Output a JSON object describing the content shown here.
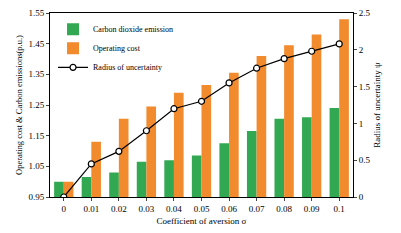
{
  "chart_data": {
    "type": "bar",
    "x_label": "Coefficient of aversion σ",
    "y_label": "Operating cost & Carbon emissions(p.u.)",
    "y2_label": "Radius of uncertainty ψ",
    "categories": [
      "0",
      "0.01",
      "0.02",
      "0.03",
      "0.04",
      "0.05",
      "0.06",
      "0.07",
      "0.08",
      "0.09",
      "0.1"
    ],
    "series": [
      {
        "name": "Carbon dioxide emission",
        "type": "bar",
        "color": "#33a852",
        "values": [
          1.0,
          1.015,
          1.03,
          1.065,
          1.07,
          1.085,
          1.125,
          1.165,
          1.205,
          1.21,
          1.24
        ]
      },
      {
        "name": "Operating cost",
        "type": "bar",
        "color": "#f28a2e",
        "values": [
          1.0,
          1.13,
          1.205,
          1.245,
          1.29,
          1.315,
          1.355,
          1.41,
          1.445,
          1.48,
          1.53
        ]
      },
      {
        "name": "Radius of uncertainty",
        "type": "line",
        "axis": "y2",
        "color": "#000000",
        "marker": "circle",
        "values": [
          0,
          0.45,
          0.62,
          0.9,
          1.2,
          1.3,
          1.55,
          1.75,
          1.88,
          1.98,
          2.08
        ]
      }
    ],
    "ylim": [
      0.95,
      1.55
    ],
    "yticks": [
      0.95,
      1.05,
      1.15,
      1.25,
      1.35,
      1.45,
      1.55
    ],
    "y2lim": [
      0,
      2.5
    ],
    "y2ticks": [
      0,
      0.5,
      1,
      1.5,
      2,
      2.5
    ],
    "grid": false,
    "legend": "top left"
  }
}
